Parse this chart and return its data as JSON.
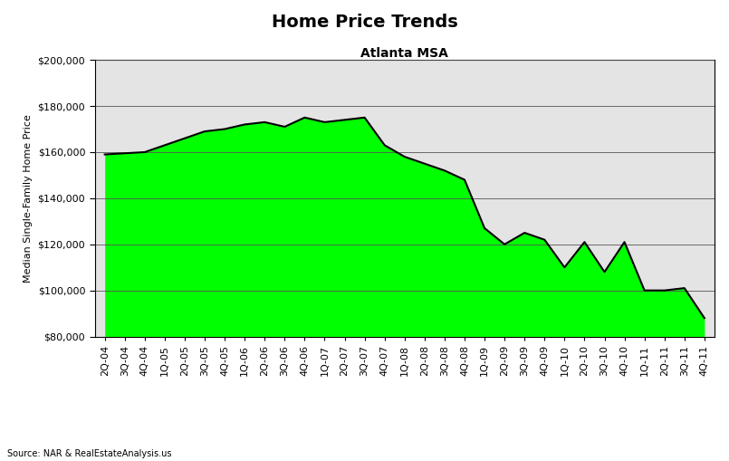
{
  "title": "Home Price Trends",
  "subtitle": "Atlanta MSA",
  "ylabel": "Median Single-Family Home Price",
  "source": "Source: NAR & RealEstateAnalysis.us",
  "fill_color": "#00ff00",
  "line_color": "#000000",
  "ylim": [
    80000,
    200000
  ],
  "yticks": [
    80000,
    100000,
    120000,
    140000,
    160000,
    180000,
    200000
  ],
  "labels": [
    "2Q-04",
    "3Q-04",
    "4Q-04",
    "1Q-05",
    "2Q-05",
    "3Q-05",
    "4Q-05",
    "1Q-06",
    "2Q-06",
    "3Q-06",
    "4Q-06",
    "1Q-07",
    "2Q-07",
    "3Q-07",
    "4Q-07",
    "1Q-08",
    "2Q-08",
    "3Q-08",
    "4Q-08",
    "1Q-09",
    "2Q-09",
    "3Q-09",
    "4Q-09",
    "1Q-10",
    "2Q-10",
    "3Q-10",
    "4Q-10",
    "1Q-11",
    "2Q-11",
    "3Q-11",
    "4Q-11"
  ],
  "values": [
    159000,
    159500,
    160000,
    163000,
    166000,
    169000,
    170000,
    172000,
    173000,
    171000,
    175000,
    173000,
    174000,
    175000,
    163000,
    158000,
    155000,
    152000,
    148000,
    127000,
    120000,
    125000,
    122000,
    110000,
    121000,
    108000,
    121000,
    100000,
    100000,
    101000,
    88000
  ],
  "dot_color": "#aaaaaa",
  "dot_bg": "#e8e8e8",
  "grid_color": "#555555",
  "title_fontsize": 14,
  "subtitle_fontsize": 10,
  "ylabel_fontsize": 8,
  "tick_fontsize": 8,
  "source_fontsize": 7
}
